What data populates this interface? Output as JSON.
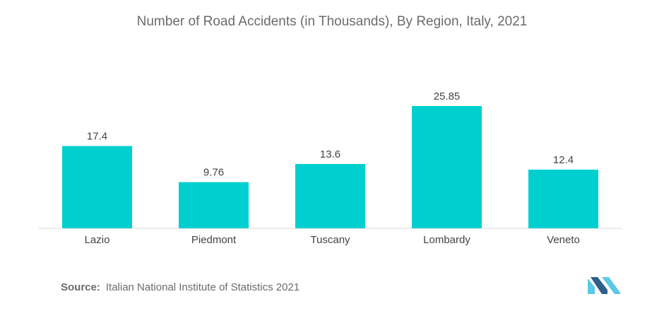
{
  "chart_data": {
    "type": "bar",
    "title": "Number of Road Accidents (in Thousands), By Region, Italy, 2021",
    "categories": [
      "Lazio",
      "Piedmont",
      "Tuscany",
      "Lombardy",
      "Veneto"
    ],
    "values": [
      17.4,
      9.76,
      13.6,
      25.85,
      12.4
    ],
    "value_labels": [
      "17.4",
      "9.76",
      "13.6",
      "25.85",
      "12.4"
    ],
    "xlabel": "",
    "ylabel": "",
    "ylim": [
      0,
      25.85
    ],
    "grid": false,
    "legend": "none",
    "bar_color": "#00cfd0"
  },
  "source": {
    "label": "Source:",
    "text": "Italian National Institute of Statistics 2021"
  },
  "colors": {
    "text": "#6b6b6b",
    "axis": "#d9d9d9",
    "logo_light": "#5bc8e6",
    "logo_dark": "#2f5f8a"
  },
  "logo_icon": "mordor-intelligence-logo-icon"
}
